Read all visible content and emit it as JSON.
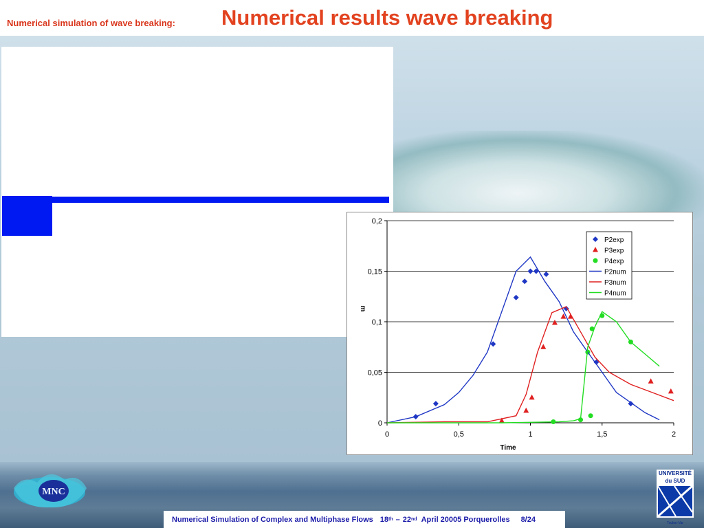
{
  "header": {
    "subtitle": "Numerical simulation of wave breaking:",
    "title": "Numerical results wave breaking"
  },
  "footer": {
    "text_main": "Numerical Simulation of Complex and Multiphase Flows",
    "date_start_num": "18",
    "date_start_sup": "th",
    "date_end_num": "22",
    "date_end_sup": "nd",
    "date_rest": "April 20005 Porquerolles",
    "page": "8/24"
  },
  "logos": {
    "left_text": "MNC",
    "right_text_1": "UNIVERSITÉ du SUD",
    "right_text_2": "Toulon-Var"
  },
  "colors": {
    "title": "#e2421f",
    "bar_blue": "#0019f2",
    "P2": "#1f37c4",
    "P3": "#e02020",
    "P4": "#22dd22"
  },
  "chart_data": {
    "type": "line",
    "xlabel": "Time",
    "ylabel": "m",
    "xlim": [
      0,
      2
    ],
    "ylim": [
      0,
      0.2
    ],
    "x_ticks": [
      "0",
      "0,5",
      "1",
      "1,5",
      "2"
    ],
    "y_ticks": [
      "0",
      "0,05",
      "0,1",
      "0,15",
      "0,2"
    ],
    "grid": "horizontal",
    "legend_position": "top-right",
    "series": [
      {
        "name": "P2exp",
        "kind": "scatter",
        "marker": "diamond",
        "color": "#1f37c4",
        "points": [
          [
            0.2,
            0.006
          ],
          [
            0.34,
            0.019
          ],
          [
            0.74,
            0.078
          ],
          [
            0.9,
            0.124
          ],
          [
            0.96,
            0.14
          ],
          [
            1.0,
            0.15
          ],
          [
            1.04,
            0.15
          ],
          [
            1.11,
            0.147
          ],
          [
            1.25,
            0.113
          ],
          [
            1.46,
            0.06
          ],
          [
            1.7,
            0.019
          ]
        ]
      },
      {
        "name": "P3exp",
        "kind": "scatter",
        "marker": "triangle",
        "color": "#e02020",
        "points": [
          [
            0.8,
            0.002
          ],
          [
            0.97,
            0.012
          ],
          [
            1.01,
            0.025
          ],
          [
            1.09,
            0.075
          ],
          [
            1.17,
            0.099
          ],
          [
            1.23,
            0.105
          ],
          [
            1.28,
            0.105
          ],
          [
            1.84,
            0.041
          ],
          [
            1.98,
            0.031
          ]
        ]
      },
      {
        "name": "P4exp",
        "kind": "scatter",
        "marker": "circle",
        "color": "#22dd22",
        "points": [
          [
            1.16,
            0.001
          ],
          [
            1.35,
            0.003
          ],
          [
            1.4,
            0.07
          ],
          [
            1.42,
            0.007
          ],
          [
            1.43,
            0.093
          ],
          [
            1.5,
            0.106
          ],
          [
            1.7,
            0.08
          ]
        ]
      },
      {
        "name": "P2num",
        "kind": "line",
        "color": "#1f37c4",
        "points": [
          [
            0,
            0
          ],
          [
            0.2,
            0.006
          ],
          [
            0.4,
            0.018
          ],
          [
            0.5,
            0.03
          ],
          [
            0.6,
            0.047
          ],
          [
            0.7,
            0.07
          ],
          [
            0.8,
            0.11
          ],
          [
            0.9,
            0.15
          ],
          [
            1.0,
            0.164
          ],
          [
            1.1,
            0.14
          ],
          [
            1.2,
            0.12
          ],
          [
            1.3,
            0.09
          ],
          [
            1.4,
            0.07
          ],
          [
            1.5,
            0.05
          ],
          [
            1.6,
            0.03
          ],
          [
            1.7,
            0.02
          ],
          [
            1.8,
            0.01
          ],
          [
            1.9,
            0.003
          ]
        ]
      },
      {
        "name": "P3num",
        "kind": "line",
        "color": "#e02020",
        "points": [
          [
            0,
            0
          ],
          [
            0.4,
            0.001
          ],
          [
            0.7,
            0.001
          ],
          [
            0.9,
            0.007
          ],
          [
            0.97,
            0.028
          ],
          [
            1.05,
            0.07
          ],
          [
            1.15,
            0.109
          ],
          [
            1.25,
            0.115
          ],
          [
            1.35,
            0.09
          ],
          [
            1.45,
            0.065
          ],
          [
            1.55,
            0.05
          ],
          [
            1.7,
            0.038
          ],
          [
            1.85,
            0.03
          ],
          [
            2.0,
            0.022
          ]
        ]
      },
      {
        "name": "P4num",
        "kind": "line",
        "color": "#22dd22",
        "points": [
          [
            0,
            0
          ],
          [
            0.8,
            0
          ],
          [
            1.2,
            0.001
          ],
          [
            1.3,
            0.002
          ],
          [
            1.35,
            0.004
          ],
          [
            1.4,
            0.075
          ],
          [
            1.45,
            0.095
          ],
          [
            1.5,
            0.11
          ],
          [
            1.6,
            0.1
          ],
          [
            1.7,
            0.08
          ],
          [
            1.8,
            0.068
          ],
          [
            1.9,
            0.056
          ]
        ]
      }
    ]
  }
}
